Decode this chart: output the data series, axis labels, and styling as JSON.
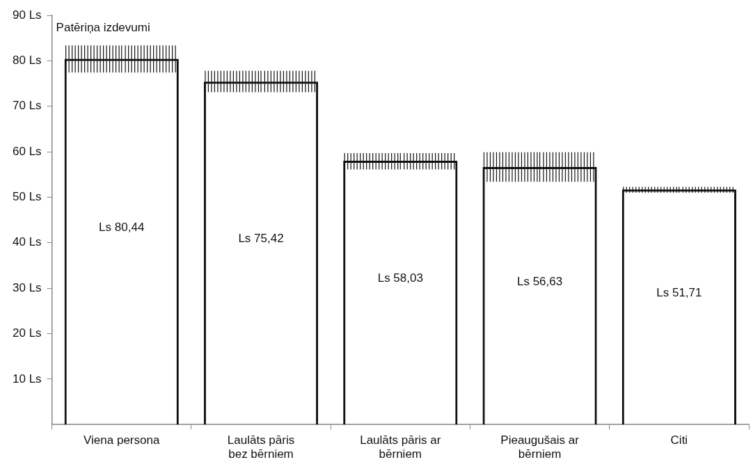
{
  "chart_data": {
    "type": "bar",
    "ylabel": "Patēriņa izdevumi",
    "categories": [
      "Viena persona",
      "Laulāts pāris bez bērniem",
      "Laulāts pāris ar bērniem",
      "Pieaugušais ar bērniem",
      "Citi"
    ],
    "values": [
      80.44,
      75.42,
      58.03,
      56.63,
      51.71
    ],
    "value_labels": [
      "Ls 80,44",
      "Ls 75,42",
      "Ls 58,03",
      "Ls 56,63",
      "Ls 51,71"
    ],
    "errors": [
      [
        77.4,
        83.4
      ],
      [
        73.1,
        77.8
      ],
      [
        56.1,
        59.7
      ],
      [
        53.4,
        59.9
      ],
      [
        51.0,
        52.3
      ]
    ],
    "color": "#111111",
    "ylim": [
      0,
      90
    ],
    "yticks": [
      {
        "value": 10,
        "label": "10 Ls"
      },
      {
        "value": 20,
        "label": "20 Ls"
      },
      {
        "value": 30,
        "label": "30 Ls"
      },
      {
        "value": 40,
        "label": "40 Ls"
      },
      {
        "value": 50,
        "label": "50 Ls"
      },
      {
        "value": 60,
        "label": "60 Ls"
      },
      {
        "value": 70,
        "label": "70 Ls"
      },
      {
        "value": 80,
        "label": "80 Ls"
      },
      {
        "value": 90,
        "label": "90 Ls"
      }
    ],
    "grid": false,
    "legend": false
  }
}
